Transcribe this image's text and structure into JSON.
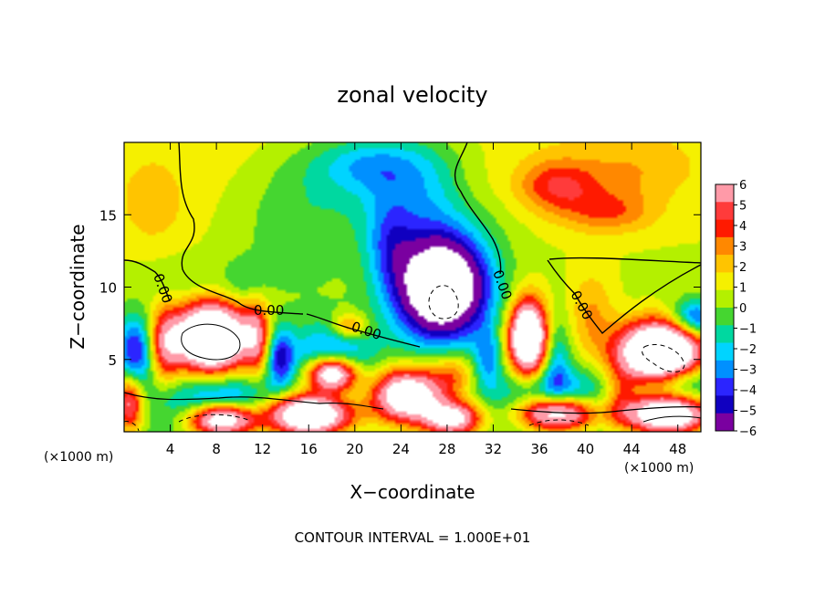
{
  "chart_data": {
    "type": "heatmap",
    "title": "zonal velocity",
    "xlabel": "X−coordinate",
    "ylabel": "Z−coordinate",
    "x_unit": "(×1000 m)",
    "y_unit": "(×1000 m)",
    "xlim": [
      0,
      50
    ],
    "ylim": [
      0,
      20
    ],
    "x_ticks": [
      4,
      8,
      12,
      16,
      20,
      24,
      28,
      32,
      36,
      40,
      44,
      48
    ],
    "y_ticks": [
      5,
      10,
      15
    ],
    "colorbar": {
      "ticks": [
        6,
        5,
        4,
        3,
        2,
        1,
        0,
        -1,
        -2,
        -3,
        -4,
        -5,
        -6
      ],
      "tick_labels": [
        "6",
        "5",
        "4",
        "3",
        "2",
        "1",
        "0",
        "−1",
        "−2",
        "−3",
        "−4",
        "−5",
        "−6"
      ],
      "colors": [
        "#ff9aa8",
        "#ff3b3b",
        "#ff1a00",
        "#ff8800",
        "#ffc400",
        "#f5f000",
        "#b4f000",
        "#45d630",
        "#00d8a0",
        "#00d4ff",
        "#0090ff",
        "#2b25ff",
        "#1000c0",
        "#7a00a0"
      ]
    },
    "contour_labels": [
      "0.00",
      "0.00",
      "0.00",
      "0.00",
      "0.00"
    ],
    "footnote": "CONTOUR INTERVAL = 1.000E+01",
    "field_blobs": [
      {
        "x": 25.5,
        "y": 16.5,
        "rx": 6,
        "ry": 4,
        "v": -3.2
      },
      {
        "x": 21,
        "y": 18.5,
        "rx": 5,
        "ry": 2,
        "v": -2.6
      },
      {
        "x": 15,
        "y": 15,
        "rx": 5,
        "ry": 5,
        "v": -1.6
      },
      {
        "x": 23,
        "y": 13,
        "rx": 2,
        "ry": 3,
        "v": -2.5
      },
      {
        "x": 27.5,
        "y": 10,
        "rx": 4,
        "ry": 3.5,
        "v": -12
      },
      {
        "x": 37.5,
        "y": 17,
        "rx": 3.5,
        "ry": 1.8,
        "v": 3.2
      },
      {
        "x": 42,
        "y": 15.2,
        "rx": 4,
        "ry": 1.5,
        "v": 2.4
      },
      {
        "x": 44,
        "y": 18,
        "rx": 5,
        "ry": 2,
        "v": 1.3
      },
      {
        "x": 30,
        "y": 17,
        "rx": 3,
        "ry": 2.5,
        "v": 0.9
      },
      {
        "x": 2.5,
        "y": 15.5,
        "rx": 3,
        "ry": 3,
        "v": 1.2
      },
      {
        "x": 5,
        "y": 10.5,
        "rx": 3,
        "ry": 1.5,
        "v": -0.8
      },
      {
        "x": 10.5,
        "y": 10.5,
        "rx": 2,
        "ry": 1.5,
        "v": -1.4
      },
      {
        "x": 7.5,
        "y": 6.5,
        "rx": 3,
        "ry": 2.2,
        "v": 14
      },
      {
        "x": 3.5,
        "y": 6,
        "rx": 1.4,
        "ry": 2.5,
        "v": 4.5
      },
      {
        "x": 11.5,
        "y": 6.5,
        "rx": 1.2,
        "ry": 2.5,
        "v": 4.5
      },
      {
        "x": 1,
        "y": 5.5,
        "rx": 1.6,
        "ry": 2.5,
        "v": -5
      },
      {
        "x": 0.5,
        "y": 2,
        "rx": 1.2,
        "ry": 2,
        "v": 6
      },
      {
        "x": 13.5,
        "y": 5.2,
        "rx": 1.2,
        "ry": 2,
        "v": -4.5
      },
      {
        "x": 18,
        "y": 4,
        "rx": 2.2,
        "ry": 1.2,
        "v": 12
      },
      {
        "x": 18,
        "y": 4.8,
        "rx": 3.5,
        "ry": 2.5,
        "v": -4.5
      },
      {
        "x": 19.5,
        "y": 7.3,
        "rx": 1.5,
        "ry": 0.9,
        "v": 3.5
      },
      {
        "x": 24.5,
        "y": 2.5,
        "rx": 3,
        "ry": 1.8,
        "v": 10
      },
      {
        "x": 16,
        "y": 1.2,
        "rx": 3.5,
        "ry": 1.4,
        "v": 12
      },
      {
        "x": 8.5,
        "y": 0.9,
        "rx": 3,
        "ry": 1.2,
        "v": 12
      },
      {
        "x": 8.5,
        "y": 1.8,
        "rx": 4.5,
        "ry": 1.8,
        "v": -5
      },
      {
        "x": 28.5,
        "y": 0.9,
        "rx": 2.5,
        "ry": 1.2,
        "v": 8
      },
      {
        "x": 28.5,
        "y": 4,
        "rx": 2,
        "ry": 1.5,
        "v": 3
      },
      {
        "x": 35,
        "y": 6.5,
        "rx": 1.6,
        "ry": 2.5,
        "v": 12
      },
      {
        "x": 31.5,
        "y": 5,
        "rx": 1.2,
        "ry": 2,
        "v": -3
      },
      {
        "x": 37.5,
        "y": 5,
        "rx": 1.2,
        "ry": 3,
        "v": -2.5
      },
      {
        "x": 37.5,
        "y": 1.3,
        "rx": 3.5,
        "ry": 1.3,
        "v": 12
      },
      {
        "x": 37.5,
        "y": 2,
        "rx": 5,
        "ry": 2,
        "v": -5
      },
      {
        "x": 40.5,
        "y": 8,
        "rx": 2,
        "ry": 3,
        "v": 2.2
      },
      {
        "x": 46.5,
        "y": 5.5,
        "rx": 3.5,
        "ry": 2,
        "v": 14
      },
      {
        "x": 49.5,
        "y": 7.8,
        "rx": 2,
        "ry": 1.3,
        "v": -5
      },
      {
        "x": 48.5,
        "y": 3.5,
        "rx": 3,
        "ry": 1.5,
        "v": -3
      },
      {
        "x": 47,
        "y": 1.2,
        "rx": 3.5,
        "ry": 1.3,
        "v": 11
      },
      {
        "x": 43,
        "y": 2.5,
        "rx": 1.5,
        "ry": 2,
        "v": 3
      }
    ]
  }
}
